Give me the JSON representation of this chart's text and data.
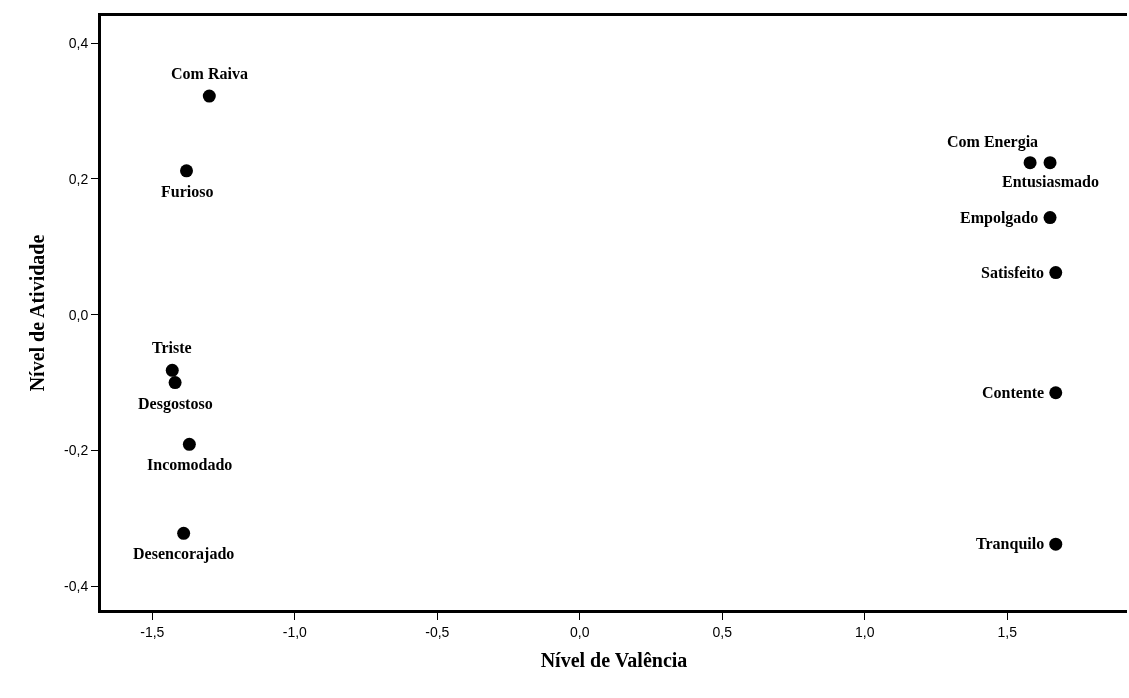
{
  "chart_data": {
    "type": "scatter",
    "xlabel": "Nível de Valência",
    "ylabel": "Nível de Atividade",
    "x": [
      -1.3,
      -1.38,
      -1.43,
      -1.42,
      -1.37,
      -1.39,
      1.58,
      1.65,
      1.65,
      1.67,
      1.67,
      1.67
    ],
    "series": [
      {
        "color": "#000000",
        "values": [
          0.322,
          0.212,
          -0.082,
          -0.1,
          -0.191,
          -0.322,
          0.224,
          0.224,
          0.143,
          0.062,
          -0.115,
          -0.338
        ]
      }
    ],
    "annotations": [
      {
        "text": "Com Raiva",
        "x": -1.3,
        "y": 0.322
      },
      {
        "text": "Furioso",
        "x": -1.38,
        "y": 0.212
      },
      {
        "text": "Triste",
        "x": -1.43,
        "y": -0.082
      },
      {
        "text": "Desgostoso",
        "x": -1.42,
        "y": -0.1
      },
      {
        "text": "Incomodado",
        "x": -1.37,
        "y": -0.191
      },
      {
        "text": "Desencorajado",
        "x": -1.39,
        "y": -0.322
      },
      {
        "text": "Com Energia",
        "x": 1.58,
        "y": 0.224
      },
      {
        "text": "Entusiasmado",
        "x": 1.65,
        "y": 0.224
      },
      {
        "text": "Empolgado",
        "x": 1.65,
        "y": 0.143
      },
      {
        "text": "Satisfeito",
        "x": 1.67,
        "y": 0.062
      },
      {
        "text": "Contente",
        "x": 1.67,
        "y": -0.115
      },
      {
        "text": "Tranquilo",
        "x": 1.67,
        "y": -0.338
      }
    ],
    "xlim": [
      -1.68,
      1.92
    ],
    "ylim": [
      -0.435,
      0.44
    ],
    "xticks": [
      {
        "value": -1.5,
        "label": "-1,5"
      },
      {
        "value": -1.0,
        "label": "-1,0"
      },
      {
        "value": -0.5,
        "label": "-0,5"
      },
      {
        "value": 0.0,
        "label": "0,0"
      },
      {
        "value": 0.5,
        "label": "0,5"
      },
      {
        "value": 1.0,
        "label": "1,0"
      },
      {
        "value": 1.5,
        "label": "1,5"
      }
    ],
    "yticks": [
      {
        "value": -0.4,
        "label": "-0,4"
      },
      {
        "value": -0.2,
        "label": "-0,2"
      },
      {
        "value": 0.0,
        "label": "0,0"
      },
      {
        "value": 0.2,
        "label": "0,2"
      },
      {
        "value": 0.4,
        "label": "0,4"
      }
    ],
    "grid": false,
    "legend": false,
    "marker": "circle"
  }
}
